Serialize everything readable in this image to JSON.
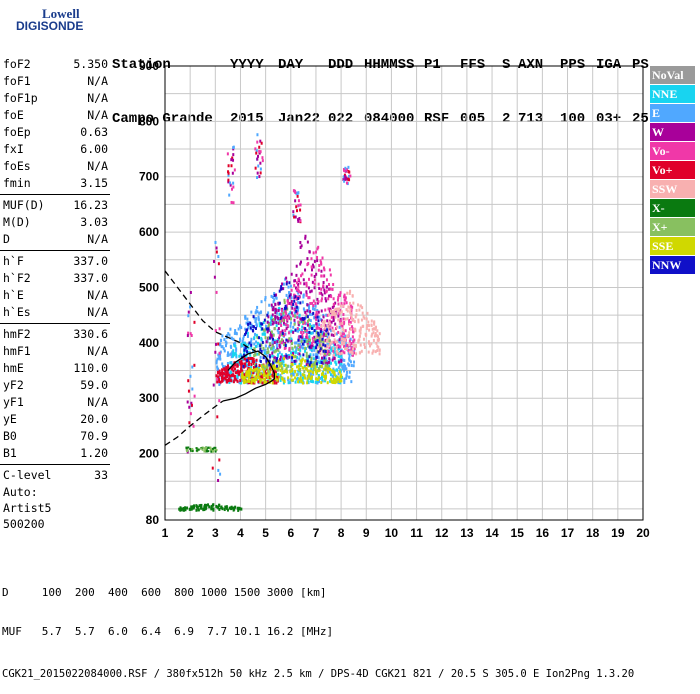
{
  "logo": {
    "line1": "Lowell",
    "line2": "DIGISONDE",
    "color": "#1a3c8c"
  },
  "header": {
    "row1": [
      "Station",
      "YYYY",
      "DAY",
      "DDD",
      "HHMMSS",
      "P1",
      "FFS",
      "S",
      "AXN",
      "PPS",
      "IGA",
      "PS"
    ],
    "row2": [
      "Campo Grande",
      "2015",
      "Jan22",
      "022",
      "084000",
      "RSF",
      "005",
      "2",
      "713",
      "100",
      "03+",
      "25"
    ]
  },
  "params": {
    "group1": [
      {
        "label": "foF2",
        "value": "5.350"
      },
      {
        "label": "foF1",
        "value": "N/A"
      },
      {
        "label": "foF1p",
        "value": "N/A"
      },
      {
        "label": "foE",
        "value": "N/A"
      },
      {
        "label": "foEp",
        "value": "0.63"
      },
      {
        "label": "fxI",
        "value": "6.00"
      },
      {
        "label": "foEs",
        "value": "N/A"
      },
      {
        "label": "fmin",
        "value": "3.15"
      }
    ],
    "group2": [
      {
        "label": "MUF(D)",
        "value": "16.23"
      },
      {
        "label": "M(D)",
        "value": "3.03"
      },
      {
        "label": "D",
        "value": "N/A"
      }
    ],
    "group3": [
      {
        "label": "h`F",
        "value": "337.0"
      },
      {
        "label": "h`F2",
        "value": "337.0"
      },
      {
        "label": "h`E",
        "value": "N/A"
      },
      {
        "label": "h`Es",
        "value": "N/A"
      }
    ],
    "group4": [
      {
        "label": "hmF2",
        "value": "330.6"
      },
      {
        "label": "hmF1",
        "value": "N/A"
      },
      {
        "label": "hmE",
        "value": "110.0"
      },
      {
        "label": "yF2",
        "value": "59.0"
      },
      {
        "label": "yF1",
        "value": "N/A"
      },
      {
        "label": "yE",
        "value": "20.0"
      },
      {
        "label": "B0",
        "value": "70.9"
      },
      {
        "label": "B1",
        "value": "1.20"
      }
    ],
    "group5": [
      {
        "label": "C-level",
        "value": "33"
      }
    ]
  },
  "auto": {
    "line1": "Auto:",
    "line2": "Artist5",
    "line3": "500200"
  },
  "legend": [
    {
      "label": "NoVal",
      "color": "#9a9a9a"
    },
    {
      "label": "NNE",
      "color": "#18d4f0"
    },
    {
      "label": "E",
      "color": "#50a8ff"
    },
    {
      "label": "W",
      "color": "#a8009a"
    },
    {
      "label": "Vo-",
      "color": "#f038a8"
    },
    {
      "label": "Vo+",
      "color": "#e0002a"
    },
    {
      "label": "SSW",
      "color": "#f8b0b0"
    },
    {
      "label": "X-",
      "color": "#0a7a10"
    },
    {
      "label": "X+",
      "color": "#88c060"
    },
    {
      "label": "SSE",
      "color": "#d0d800"
    },
    {
      "label": "NNW",
      "color": "#1010c8"
    }
  ],
  "footer": {
    "line1": "D     100  200  400  600  800 1000 1500 3000 [km]",
    "line2": "MUF   5.7  5.7  6.0  6.4  6.9  7.7 10.1 16.2 [MHz]",
    "line3": "CGK21_2015022084000.RSF / 380fx512h 50 kHz 2.5 km / DPS-4D CGK21 821 / 20.5 S 305.0 E Ion2Png 1.3.20"
  },
  "chart_data": {
    "type": "scatter",
    "xlabel": "",
    "ylabel": "",
    "xlim": [
      1,
      20
    ],
    "ylim": [
      80,
      900
    ],
    "xticks": [
      1,
      2,
      3,
      4,
      5,
      6,
      7,
      8,
      9,
      10,
      11,
      12,
      13,
      14,
      15,
      16,
      17,
      18,
      19,
      20
    ],
    "yticks": [
      80,
      200,
      300,
      400,
      500,
      600,
      700,
      800,
      900
    ],
    "grid": true,
    "series": [
      {
        "name": "virtual height trace",
        "style": "dashed",
        "color": "#000000",
        "x": [
          1.0,
          1.5,
          2.0,
          2.5,
          3.0,
          3.5,
          4.0,
          4.3,
          4.6
        ],
        "y": [
          530,
          500,
          470,
          440,
          420,
          410,
          400,
          392,
          385
        ]
      },
      {
        "name": "virtual height trace lower",
        "style": "dashed",
        "color": "#000000",
        "x": [
          1.0,
          1.5,
          2.0,
          2.5,
          3.0,
          3.3
        ],
        "y": [
          215,
          230,
          250,
          268,
          285,
          295
        ]
      },
      {
        "name": "fitted trace",
        "style": "solid",
        "color": "#000000",
        "x": [
          3.3,
          3.8,
          4.2,
          4.6,
          5.0,
          5.2,
          5.35,
          5.35,
          5.2,
          5.0,
          4.7,
          4.3,
          3.8,
          3.5
        ],
        "y": [
          295,
          300,
          308,
          318,
          325,
          330,
          335,
          345,
          360,
          375,
          385,
          380,
          365,
          350
        ]
      }
    ],
    "scatter_cloud": [
      {
        "color": "#50a8ff",
        "x_range": [
          3.0,
          8.5
        ],
        "y_range": [
          330,
          520
        ],
        "count": 600
      },
      {
        "color": "#18d4f0",
        "x_range": [
          3.5,
          8.0
        ],
        "y_range": [
          330,
          480
        ],
        "count": 300
      },
      {
        "color": "#a8009a",
        "x_range": [
          5.0,
          8.0
        ],
        "y_range": [
          360,
          600
        ],
        "count": 250
      },
      {
        "color": "#f038a8",
        "x_range": [
          5.5,
          8.5
        ],
        "y_range": [
          380,
          580
        ],
        "count": 250
      },
      {
        "color": "#e0002a",
        "x_range": [
          3.0,
          5.5
        ],
        "y_range": [
          330,
          380
        ],
        "count": 200
      },
      {
        "color": "#f8b0b0",
        "x_range": [
          7.0,
          9.5
        ],
        "y_range": [
          380,
          500
        ],
        "count": 220
      },
      {
        "color": "#d0d800",
        "x_range": [
          4.0,
          8.0
        ],
        "y_range": [
          330,
          380
        ],
        "count": 250
      },
      {
        "color": "#88c060",
        "x_range": [
          4.5,
          7.5
        ],
        "y_range": [
          350,
          500
        ],
        "count": 120
      },
      {
        "color": "#0a7a10",
        "x_range": [
          1.5,
          4.0
        ],
        "y_range": [
          100,
          112
        ],
        "count": 90
      },
      {
        "color": "#1010c8",
        "x_range": [
          4.0,
          7.5
        ],
        "y_range": [
          360,
          520
        ],
        "count": 120
      }
    ]
  }
}
